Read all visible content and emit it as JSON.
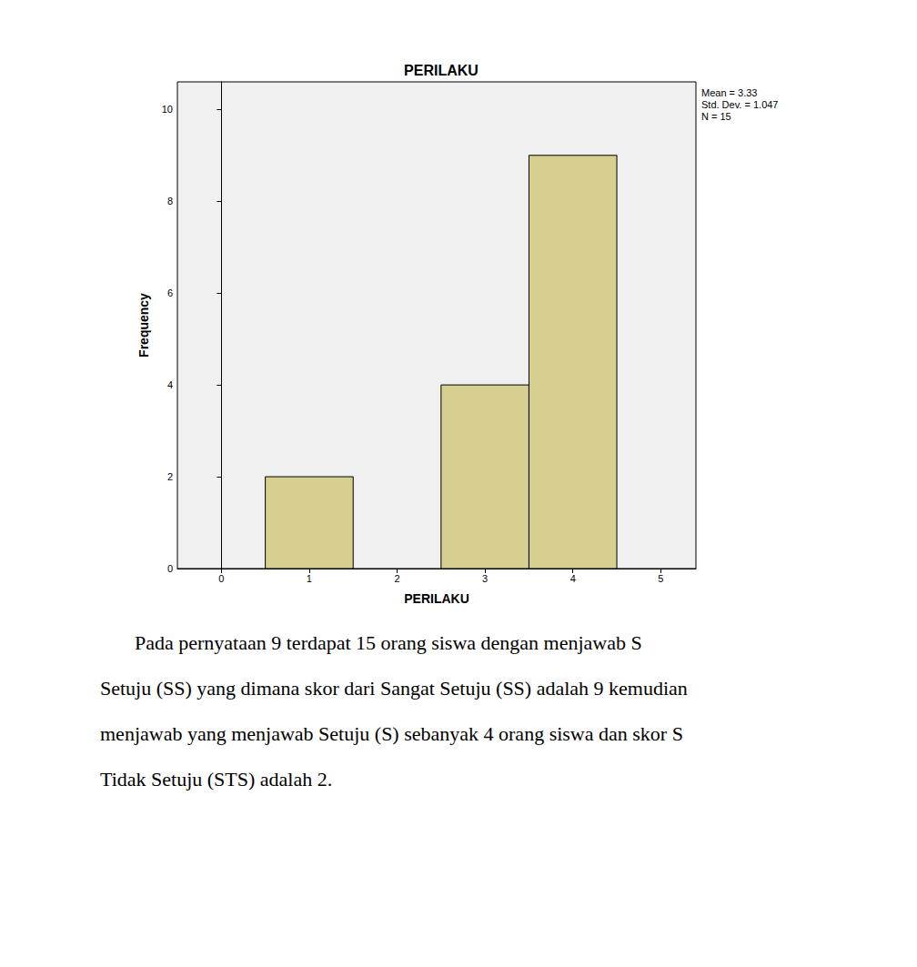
{
  "chart_data": {
    "type": "histogram",
    "title": "PERILAKU",
    "x_label": "PERILAKU",
    "y_label": "Frequency",
    "bins": [
      0.5,
      1.5,
      2.5,
      3.5,
      4.5
    ],
    "values": [
      2,
      0,
      4,
      9
    ],
    "color": "#d6cf90",
    "xlim": [
      -0.5,
      5.4
    ],
    "xticks": [
      0,
      1,
      2,
      3,
      4,
      5
    ],
    "ylim": [
      0,
      10.6
    ],
    "yticks": [
      0,
      2,
      4,
      6,
      8,
      10
    ],
    "grid": false,
    "annotations": [
      "Mean = 3.33",
      "Std. Dev. = 1.047",
      "N = 15"
    ]
  },
  "paragraph": [
    "Pada pernyataan 9 terdapat 15 orang siswa dengan menjawab S",
    "Setuju (SS) yang dimana skor dari Sangat Setuju (SS) adalah 9 kemudian",
    "menjawab yang menjawab Setuju (S) sebanyak 4 orang siswa dan skor S",
    "Tidak Setuju (STS) adalah 2."
  ]
}
